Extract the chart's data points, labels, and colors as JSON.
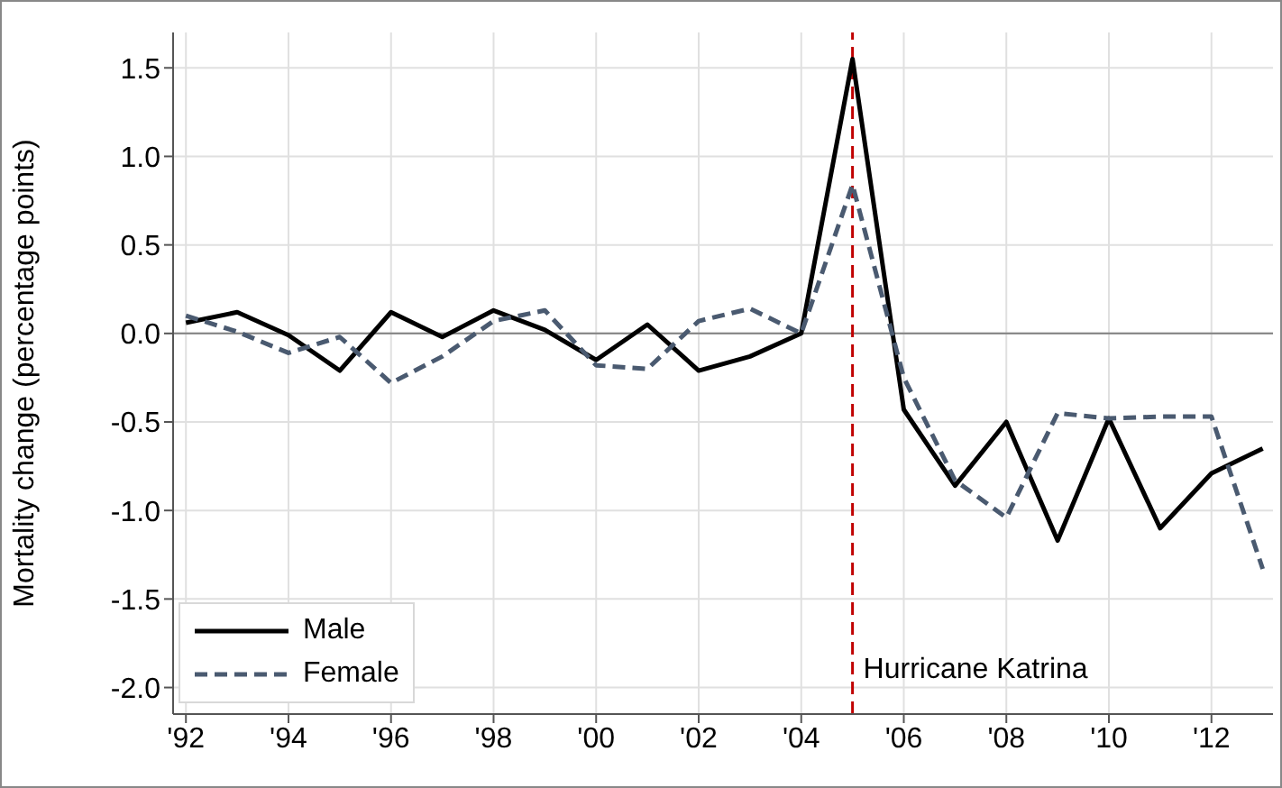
{
  "chart_data": {
    "type": "line",
    "ylabel": "Mortality change (percentage points)",
    "x": [
      1992,
      1993,
      1994,
      1995,
      1996,
      1997,
      1998,
      1999,
      2000,
      2001,
      2002,
      2003,
      2004,
      2005,
      2006,
      2007,
      2008,
      2009,
      2010,
      2011,
      2012,
      2013
    ],
    "series": [
      {
        "name": "Male",
        "color": "#000000",
        "line_style": "solid",
        "values": [
          0.06,
          0.12,
          -0.01,
          -0.21,
          0.12,
          -0.02,
          0.13,
          0.02,
          -0.15,
          0.05,
          -0.21,
          -0.13,
          0,
          1.55,
          -0.43,
          -0.86,
          -0.5,
          -1.17,
          -0.48,
          -1.1,
          -0.79,
          -0.65
        ]
      },
      {
        "name": "Female",
        "color": "#4a5a70",
        "line_style": "dashed",
        "values": [
          0.1,
          0.01,
          -0.11,
          -0.02,
          -0.28,
          -0.13,
          0.07,
          0.13,
          -0.18,
          -0.2,
          0.07,
          0.14,
          0,
          0.84,
          -0.25,
          -0.83,
          -1.04,
          -0.45,
          -0.48,
          -0.47,
          -0.47,
          -1.33
        ]
      }
    ],
    "xlim": [
      1991.75,
      2013.2
    ],
    "xticks": [
      {
        "value": 1992,
        "label": "'92"
      },
      {
        "value": 1994,
        "label": "'94"
      },
      {
        "value": 1996,
        "label": "'96"
      },
      {
        "value": 1998,
        "label": "'98"
      },
      {
        "value": 2000,
        "label": "'00"
      },
      {
        "value": 2002,
        "label": "'02"
      },
      {
        "value": 2004,
        "label": "'04"
      },
      {
        "value": 2006,
        "label": "'06"
      },
      {
        "value": 2008,
        "label": "'08"
      },
      {
        "value": 2010,
        "label": "'10"
      },
      {
        "value": 2012,
        "label": "'12"
      }
    ],
    "ylim": [
      -2.15,
      1.7
    ],
    "yticks": [
      {
        "value": -2,
        "label": "-2.0"
      },
      {
        "value": -1.5,
        "label": "-1.5"
      },
      {
        "value": -1,
        "label": "-1.0"
      },
      {
        "value": -0.5,
        "label": "-0.5"
      },
      {
        "value": 0,
        "label": "0.0"
      },
      {
        "value": 0.5,
        "label": "0.5"
      },
      {
        "value": 1,
        "label": "1.0"
      },
      {
        "value": 1.5,
        "label": "1.5"
      }
    ],
    "ref_lines": [
      {
        "axis": "y",
        "value": 0,
        "label": null,
        "color": "#808080",
        "line_style": "solid"
      },
      {
        "axis": "x",
        "value": 2005,
        "label": "Hurricane Katrina",
        "color": "#c00000",
        "line_style": "dashed"
      }
    ],
    "grid": true,
    "legend": "bottom left",
    "marker": "none"
  }
}
